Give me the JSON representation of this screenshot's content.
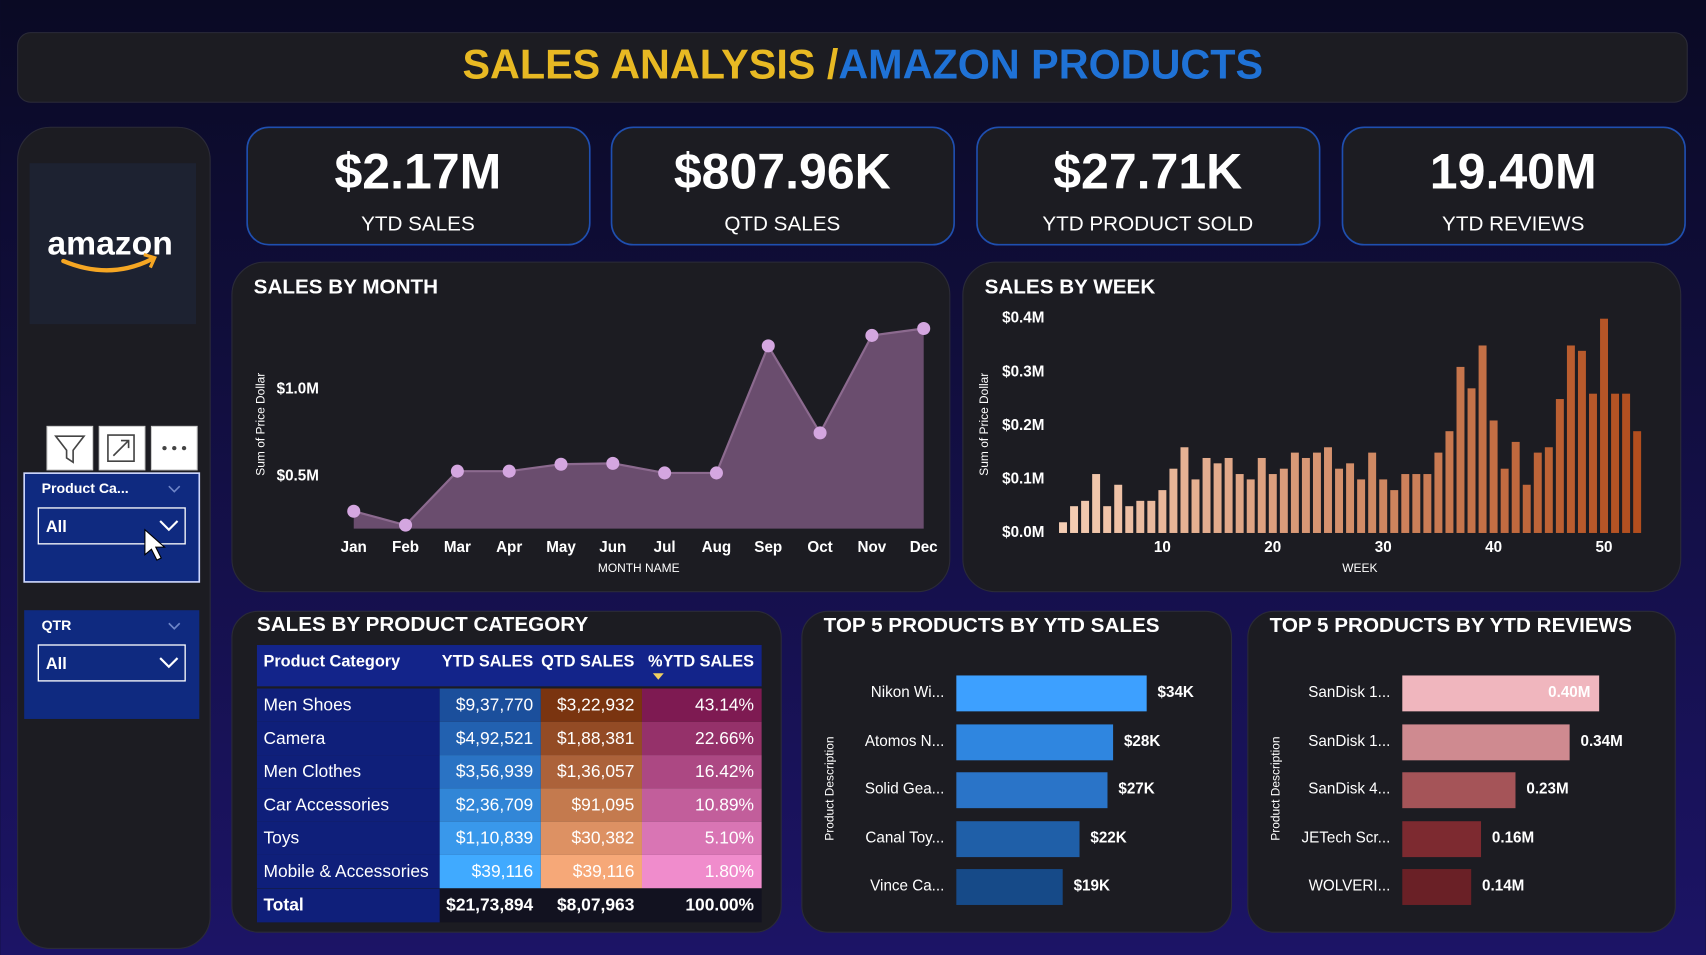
{
  "header": {
    "title_part1": "SALES ANALYSIS /",
    "title_part2": "AMAZON PRODUCTS"
  },
  "logo": "amazon",
  "filters": [
    {
      "label": "Product Ca...",
      "value": "All"
    },
    {
      "label": "QTR",
      "value": "All"
    }
  ],
  "kpis": [
    {
      "value": "$2.17M",
      "label": "YTD SALES"
    },
    {
      "value": "$807.96K",
      "label": "QTD SALES"
    },
    {
      "value": "$27.71K",
      "label": "YTD PRODUCT SOLD"
    },
    {
      "value": "19.40M",
      "label": "YTD REVIEWS"
    }
  ],
  "chart_data": [
    {
      "type": "area",
      "title": "SALES BY MONTH",
      "x_label": "MONTH NAME",
      "y_label": "Sum of Price Dollar",
      "categories": [
        "Jan",
        "Feb",
        "Mar",
        "Apr",
        "May",
        "Jun",
        "Jul",
        "Aug",
        "Sep",
        "Oct",
        "Nov",
        "Dec"
      ],
      "values": [
        0.3,
        0.22,
        0.53,
        0.53,
        0.57,
        0.575,
        0.52,
        0.52,
        1.25,
        0.75,
        1.31,
        1.35
      ],
      "color": "#6a4d6e",
      "line_color": "#8c6a8f",
      "marker_color": "#d4a6e0",
      "ylim": [
        0.2,
        1.4
      ],
      "yticks": [
        {
          "value": 0.5,
          "label": "$0.5M"
        },
        {
          "value": 1.0,
          "label": "$1.0M"
        }
      ]
    },
    {
      "type": "bar",
      "title": "SALES BY WEEK",
      "x_label": "WEEK",
      "y_label": "Sum of Price Dollar",
      "x": [
        1,
        2,
        3,
        4,
        5,
        6,
        7,
        8,
        9,
        10,
        11,
        12,
        13,
        14,
        15,
        16,
        17,
        18,
        19,
        20,
        21,
        22,
        23,
        24,
        25,
        26,
        27,
        28,
        29,
        30,
        31,
        32,
        33,
        34,
        35,
        36,
        37,
        38,
        39,
        40,
        41,
        42,
        43,
        44,
        45,
        46,
        47,
        48,
        49,
        50,
        51,
        52,
        53
      ],
      "values": [
        0.02,
        0.05,
        0.06,
        0.11,
        0.05,
        0.09,
        0.05,
        0.06,
        0.06,
        0.08,
        0.12,
        0.16,
        0.1,
        0.14,
        0.13,
        0.14,
        0.11,
        0.1,
        0.14,
        0.11,
        0.12,
        0.15,
        0.14,
        0.15,
        0.16,
        0.12,
        0.13,
        0.1,
        0.15,
        0.1,
        0.08,
        0.11,
        0.11,
        0.11,
        0.15,
        0.19,
        0.31,
        0.27,
        0.35,
        0.21,
        0.12,
        0.17,
        0.09,
        0.15,
        0.16,
        0.25,
        0.35,
        0.34,
        0.26,
        0.4,
        0.26,
        0.26,
        0.19
      ],
      "color_range": [
        "#f4cdb4",
        "#b24e1e"
      ],
      "xlim": [
        0.5,
        53.5
      ],
      "xticks": [
        10,
        20,
        30,
        40,
        50
      ],
      "ylim": [
        0,
        0.4
      ],
      "yticks": [
        {
          "value": 0,
          "label": "$0.0M"
        },
        {
          "value": 0.1,
          "label": "$0.1M"
        },
        {
          "value": 0.2,
          "label": "$0.2M"
        },
        {
          "value": 0.3,
          "label": "$0.3M"
        },
        {
          "value": 0.4,
          "label": "$0.4M"
        }
      ]
    },
    {
      "type": "hbar",
      "title": "TOP 5 PRODUCTS BY YTD SALES",
      "y_label": "Product Description",
      "categories": [
        "Nikon Wi...",
        "Atomos N...",
        "Solid Gea...",
        "Canal Toy...",
        "Vince Ca..."
      ],
      "values": [
        34,
        28,
        27,
        22,
        19
      ],
      "value_labels": [
        "$34K",
        "$28K",
        "$27K",
        "$22K",
        "$19K"
      ],
      "colors": [
        "#3da0ff",
        "#2f86e0",
        "#2a74c8",
        "#1f5fa8",
        "#164a88"
      ]
    },
    {
      "type": "hbar",
      "title": "TOP 5 PRODUCTS BY YTD REVIEWS",
      "y_label": "Product Description",
      "categories": [
        "SanDisk 1...",
        "SanDisk 1...",
        "SanDisk 4...",
        "JETech Scr...",
        "WOLVERI..."
      ],
      "values": [
        0.4,
        0.34,
        0.23,
        0.16,
        0.14
      ],
      "value_labels": [
        "0.40M",
        "0.34M",
        "0.23M",
        "0.16M",
        "0.14M"
      ],
      "colors": [
        "#f0b6be",
        "#cf8a90",
        "#a55458",
        "#7d2a30",
        "#6a2026"
      ]
    }
  ],
  "table": {
    "title": "SALES BY PRODUCT CATEGORY",
    "columns": [
      "Product Category",
      "YTD SALES",
      "QTD SALES",
      "%YTD SALES"
    ],
    "rows": [
      [
        "Men Shoes",
        "$9,37,770",
        "$3,22,932",
        "43.14%"
      ],
      [
        "Camera",
        "$4,92,521",
        "$1,88,381",
        "22.66%"
      ],
      [
        "Men Clothes",
        "$3,56,939",
        "$1,36,057",
        "16.42%"
      ],
      [
        "Car Accessories",
        "$2,36,709",
        "$91,095",
        "10.89%"
      ],
      [
        "Toys",
        "$1,10,839",
        "$30,382",
        "5.10%"
      ],
      [
        "Mobile & Accessories",
        "$39,116",
        "$39,116",
        "1.80%"
      ]
    ],
    "total": [
      "Total",
      "$21,73,894",
      "$8,07,963",
      "100.00%"
    ]
  }
}
